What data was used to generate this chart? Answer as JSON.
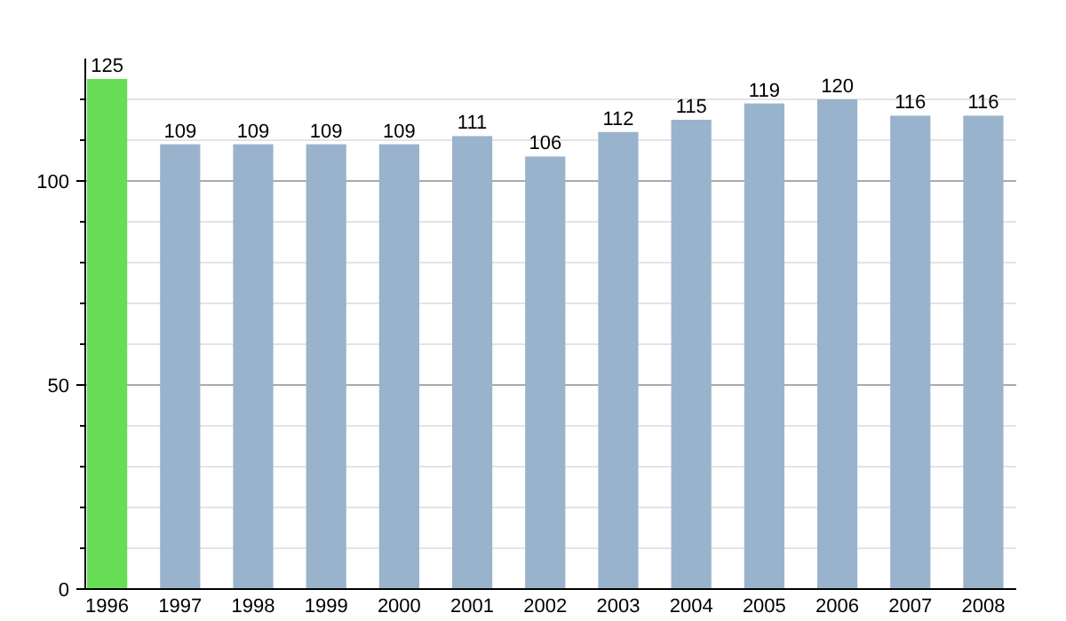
{
  "chart_data": {
    "type": "bar",
    "categories": [
      "1996",
      "1997",
      "1998",
      "1999",
      "2000",
      "2001",
      "2002",
      "2003",
      "2004",
      "2005",
      "2006",
      "2007",
      "2008"
    ],
    "values": [
      125,
      109,
      109,
      109,
      109,
      111,
      106,
      112,
      115,
      119,
      120,
      116,
      116
    ],
    "colors": [
      "#66dd55",
      "#9ab3cc",
      "#9ab3cc",
      "#9ab3cc",
      "#9ab3cc",
      "#9ab3cc",
      "#9ab3cc",
      "#9ab3cc",
      "#9ab3cc",
      "#9ab3cc",
      "#9ab3cc",
      "#9ab3cc",
      "#9ab3cc"
    ],
    "ylim": [
      0,
      130
    ],
    "yticks": [
      0,
      {
        "value": 10,
        "label": null
      },
      {
        "value": 20,
        "label": null
      },
      {
        "value": 30,
        "label": null
      },
      {
        "value": 40,
        "label": null
      },
      50,
      {
        "value": 60,
        "label": null
      },
      {
        "value": 70,
        "label": null
      },
      {
        "value": 80,
        "label": null
      },
      {
        "value": 90,
        "label": null
      },
      100,
      {
        "value": 110,
        "label": null
      },
      {
        "value": 120,
        "label": null
      }
    ],
    "grid": "y",
    "data_labels": true
  }
}
